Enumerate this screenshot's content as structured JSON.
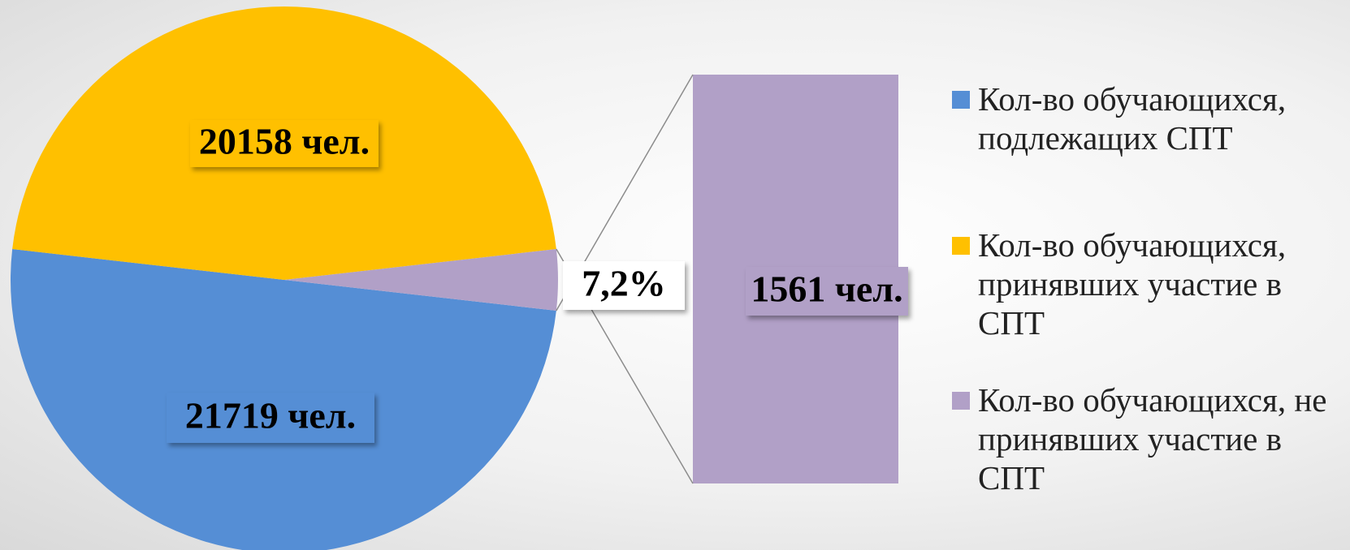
{
  "chart_data": {
    "type": "pie-of-bar",
    "series": [
      {
        "name": "Кол-во обучающихся, подлежащих СПТ",
        "color": "#558ed5",
        "values": [
          21719
        ],
        "value_labels": [
          "21719 чел."
        ]
      },
      {
        "name": "Кол-во обучающихся, принявших участие в СПТ",
        "color": "#ffc000",
        "values": [
          20158
        ],
        "value_labels": [
          "20158 чел."
        ]
      },
      {
        "name": "Кол-во обучающихся, не принявших участие в СПТ",
        "color": "#b1a0c7",
        "values": [
          1561
        ],
        "value_labels": [
          "1561 чел."
        ]
      }
    ],
    "annotation": {
      "value": 7.2,
      "label": "7,2%"
    }
  }
}
